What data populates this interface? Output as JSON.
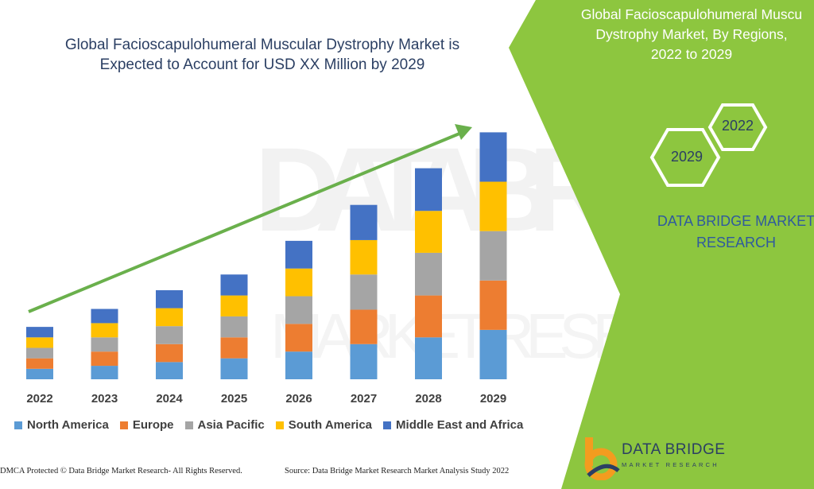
{
  "title_lines": [
    "Global Facioscapulohumeral Muscular Dystrophy Market is",
    "Expected to Account for USD XX Million by 2029"
  ],
  "side_title_lines": [
    "Global Facioscapulohumeral Muscu",
    "Dystrophy Market, By Regions,",
    "2022 to 2029"
  ],
  "hex_labels": {
    "back": "2022",
    "front": "2029"
  },
  "brand_side_lines": [
    "DATA BRIDGE MARKET",
    "RESEARCH"
  ],
  "footer": {
    "left": "DMCA Protected © Data Bridge Market Research- All Rights Reserved.",
    "right": "Source: Data Bridge Market Research Market Analysis Study 2022"
  },
  "logo": {
    "name": "DATA BRIDGE",
    "sub": "MARKET RESEARCH"
  },
  "colors": {
    "green_panel": "#8dc63f",
    "arrow": "#6ab04c",
    "north_america": "#5b9bd5",
    "europe": "#ed7d31",
    "asia_pacific": "#a5a5a5",
    "south_america": "#ffc000",
    "middle_east_africa": "#4472c4"
  },
  "chart_data": {
    "type": "bar",
    "stacked": true,
    "categories": [
      "2022",
      "2023",
      "2024",
      "2025",
      "2026",
      "2027",
      "2028",
      "2029"
    ],
    "series": [
      {
        "name": "North America",
        "values": [
          14,
          18,
          23,
          28,
          37,
          47,
          56,
          66
        ],
        "color": "#5b9bd5"
      },
      {
        "name": "Europe",
        "values": [
          14,
          19,
          24,
          28,
          37,
          46,
          56,
          66
        ],
        "color": "#ed7d31"
      },
      {
        "name": "Asia Pacific",
        "values": [
          14,
          19,
          24,
          28,
          37,
          47,
          57,
          66
        ],
        "color": "#a5a5a5"
      },
      {
        "name": "South America",
        "values": [
          14,
          19,
          24,
          28,
          37,
          46,
          56,
          66
        ],
        "color": "#ffc000"
      },
      {
        "name": "Middle East and Africa",
        "values": [
          14,
          19,
          24,
          28,
          37,
          47,
          57,
          66
        ],
        "color": "#4472c4"
      }
    ],
    "title": "Global Facioscapulohumeral Muscular Dystrophy Market is Expected to Account for USD XX Million by 2029",
    "xlabel": "",
    "ylabel": "",
    "ylim": [
      0,
      340
    ],
    "grid": false,
    "legend_position": "bottom",
    "annotations": [
      "upward trend arrow"
    ]
  }
}
